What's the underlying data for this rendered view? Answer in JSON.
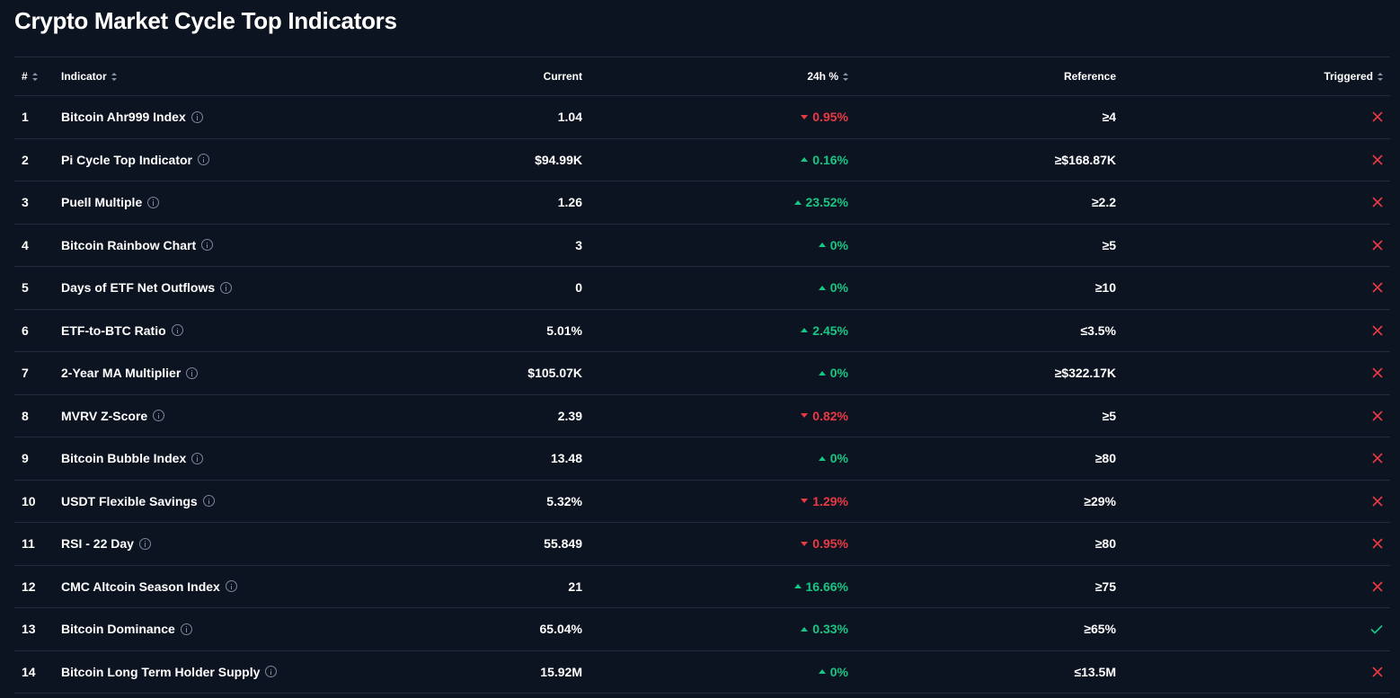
{
  "page": {
    "title": "Crypto Market Cycle Top Indicators"
  },
  "colors": {
    "background": "#0d1421",
    "up": "#16c784",
    "down": "#ea3943",
    "divider": "#222b3a"
  },
  "table": {
    "headers": {
      "num": "#",
      "indicator": "Indicator",
      "current": "Current",
      "change": "24h %",
      "reference": "Reference",
      "triggered": "Triggered"
    },
    "rows": [
      {
        "num": "1",
        "indicator": "Bitcoin Ahr999 Index",
        "current": "1.04",
        "change": "0.95%",
        "direction": "down",
        "reference": "≥4",
        "triggered": false
      },
      {
        "num": "2",
        "indicator": "Pi Cycle Top Indicator",
        "current": "$94.99K",
        "change": "0.16%",
        "direction": "up",
        "reference": "≥$168.87K",
        "triggered": false
      },
      {
        "num": "3",
        "indicator": "Puell Multiple",
        "current": "1.26",
        "change": "23.52%",
        "direction": "up",
        "reference": "≥2.2",
        "triggered": false
      },
      {
        "num": "4",
        "indicator": "Bitcoin Rainbow Chart",
        "current": "3",
        "change": "0%",
        "direction": "up",
        "reference": "≥5",
        "triggered": false
      },
      {
        "num": "5",
        "indicator": "Days of ETF Net Outflows",
        "current": "0",
        "change": "0%",
        "direction": "up",
        "reference": "≥10",
        "triggered": false
      },
      {
        "num": "6",
        "indicator": "ETF-to-BTC Ratio",
        "current": "5.01%",
        "change": "2.45%",
        "direction": "up",
        "reference": "≤3.5%",
        "triggered": false
      },
      {
        "num": "7",
        "indicator": "2-Year MA Multiplier",
        "current": "$105.07K",
        "change": "0%",
        "direction": "up",
        "reference": "≥$322.17K",
        "triggered": false
      },
      {
        "num": "8",
        "indicator": "MVRV Z-Score",
        "current": "2.39",
        "change": "0.82%",
        "direction": "down",
        "reference": "≥5",
        "triggered": false
      },
      {
        "num": "9",
        "indicator": "Bitcoin Bubble Index",
        "current": "13.48",
        "change": "0%",
        "direction": "up",
        "reference": "≥80",
        "triggered": false
      },
      {
        "num": "10",
        "indicator": "USDT Flexible Savings",
        "current": "5.32%",
        "change": "1.29%",
        "direction": "down",
        "reference": "≥29%",
        "triggered": false
      },
      {
        "num": "11",
        "indicator": "RSI - 22 Day",
        "current": "55.849",
        "change": "0.95%",
        "direction": "down",
        "reference": "≥80",
        "triggered": false
      },
      {
        "num": "12",
        "indicator": "CMC Altcoin Season Index",
        "current": "21",
        "change": "16.66%",
        "direction": "up",
        "reference": "≥75",
        "triggered": false
      },
      {
        "num": "13",
        "indicator": "Bitcoin Dominance",
        "current": "65.04%",
        "change": "0.33%",
        "direction": "up",
        "reference": "≥65%",
        "triggered": true
      },
      {
        "num": "14",
        "indicator": "Bitcoin Long Term Holder Supply",
        "current": "15.92M",
        "change": "0%",
        "direction": "up",
        "reference": "≤13.5M",
        "triggered": false
      }
    ]
  }
}
